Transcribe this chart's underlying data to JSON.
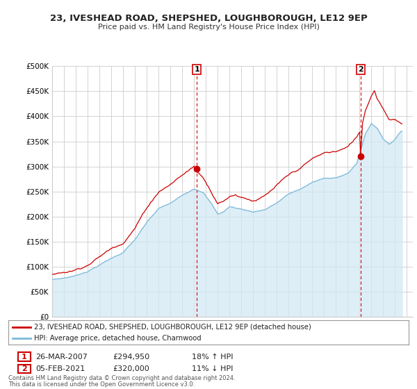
{
  "title": "23, IVESHEAD ROAD, SHEPSHED, LOUGHBOROUGH, LE12 9EP",
  "subtitle": "Price paid vs. HM Land Registry's House Price Index (HPI)",
  "ylabel_ticks": [
    "£0",
    "£50K",
    "£100K",
    "£150K",
    "£200K",
    "£250K",
    "£300K",
    "£350K",
    "£400K",
    "£450K",
    "£500K"
  ],
  "ytick_values": [
    0,
    50000,
    100000,
    150000,
    200000,
    250000,
    300000,
    350000,
    400000,
    450000,
    500000
  ],
  "ylim": [
    0,
    500000
  ],
  "xlim_start": 1995.0,
  "xlim_end": 2025.5,
  "transaction1_x": 2007.23,
  "transaction1_y": 294950,
  "transaction1_label": "1",
  "transaction1_date": "26-MAR-2007",
  "transaction1_price": "£294,950",
  "transaction1_hpi": "18% ↑ HPI",
  "transaction2_x": 2021.09,
  "transaction2_y": 320000,
  "transaction2_label": "2",
  "transaction2_date": "05-FEB-2021",
  "transaction2_price": "£320,000",
  "transaction2_hpi": "11% ↓ HPI",
  "hpi_color": "#7ab8d8",
  "hpi_fill_color": "#d0e8f5",
  "price_color": "#cc0000",
  "dashed_color": "#cc0000",
  "legend_line1": "23, IVESHEAD ROAD, SHEPSHED, LOUGHBOROUGH, LE12 9EP (detached house)",
  "legend_line2": "HPI: Average price, detached house, Charnwood",
  "footer1": "Contains HM Land Registry data © Crown copyright and database right 2024.",
  "footer2": "This data is licensed under the Open Government Licence v3.0.",
  "background_color": "#ffffff",
  "grid_color": "#cccccc"
}
